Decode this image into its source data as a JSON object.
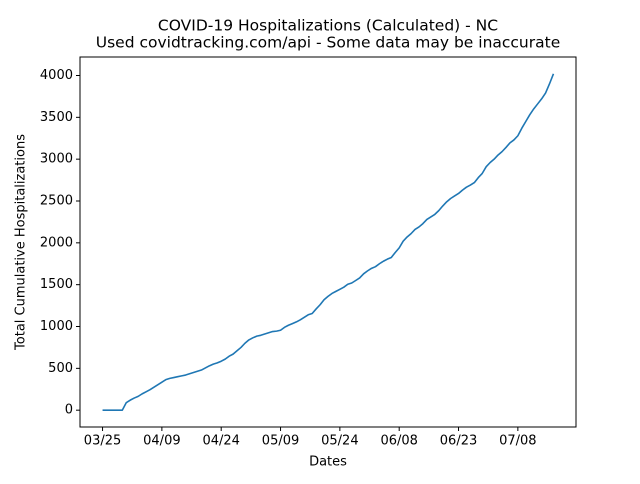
{
  "chart_data": {
    "type": "line",
    "title": "COVID-19 Hospitalizations (Calculated) - NC",
    "subtitle": "Used covidtracking.com/api - Some data may be inaccurate",
    "x_label": "Dates",
    "y_label": "Total Cumulative Hospitalizations",
    "categories": [
      "03/25",
      null,
      null,
      null,
      null,
      null,
      null,
      null,
      null,
      null,
      null,
      null,
      null,
      null,
      null,
      "04/09",
      null,
      null,
      null,
      null,
      null,
      null,
      null,
      null,
      null,
      null,
      null,
      null,
      null,
      null,
      "04/24",
      null,
      null,
      null,
      null,
      null,
      null,
      null,
      null,
      null,
      null,
      null,
      null,
      null,
      null,
      "05/09",
      null,
      null,
      null,
      null,
      null,
      null,
      null,
      null,
      null,
      null,
      null,
      null,
      null,
      null,
      "05/24",
      null,
      null,
      null,
      null,
      null,
      null,
      null,
      null,
      null,
      null,
      null,
      null,
      null,
      null,
      "06/08",
      null,
      null,
      null,
      null,
      null,
      null,
      null,
      null,
      null,
      null,
      null,
      null,
      null,
      null,
      "06/23",
      null,
      null,
      null,
      null,
      null,
      null,
      null,
      null,
      null,
      null,
      null,
      null,
      null,
      null,
      "07/08",
      null,
      null,
      null,
      null,
      null,
      null,
      null,
      null,
      null
    ],
    "series": [
      {
        "color": "#1f77b4",
        "values": [
          0,
          0,
          0,
          0,
          0,
          0,
          90,
          120,
          145,
          165,
          195,
          220,
          245,
          275,
          305,
          335,
          365,
          380,
          390,
          400,
          410,
          420,
          435,
          450,
          465,
          480,
          505,
          530,
          550,
          565,
          585,
          610,
          645,
          670,
          710,
          750,
          800,
          840,
          865,
          885,
          895,
          910,
          925,
          940,
          945,
          955,
          990,
          1015,
          1035,
          1055,
          1080,
          1110,
          1140,
          1155,
          1210,
          1260,
          1320,
          1360,
          1395,
          1420,
          1445,
          1470,
          1505,
          1520,
          1550,
          1580,
          1630,
          1665,
          1695,
          1715,
          1750,
          1780,
          1805,
          1825,
          1885,
          1940,
          2020,
          2070,
          2110,
          2160,
          2190,
          2230,
          2280,
          2310,
          2340,
          2385,
          2440,
          2490,
          2530,
          2560,
          2590,
          2630,
          2665,
          2690,
          2720,
          2780,
          2830,
          2910,
          2960,
          3000,
          3050,
          3090,
          3140,
          3195,
          3230,
          3280,
          3370,
          3450,
          3530,
          3600,
          3660,
          3720,
          3790,
          3900,
          4020
        ]
      }
    ],
    "ylim": [
      -201,
      4221
    ],
    "yticks": [
      0,
      500,
      1000,
      1500,
      2000,
      2500,
      3000,
      3500,
      4000
    ]
  }
}
